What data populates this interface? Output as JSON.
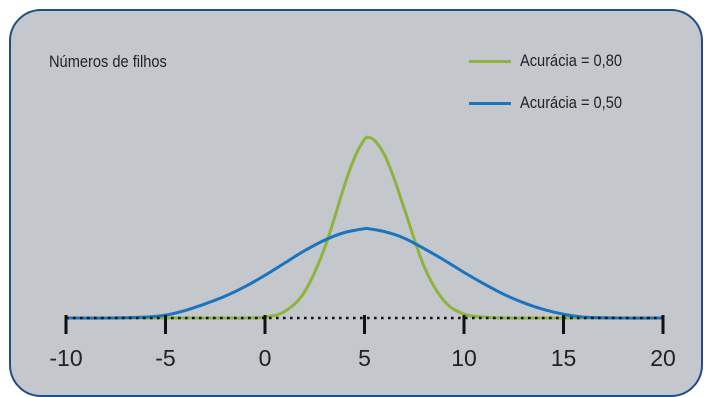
{
  "chart_data": {
    "type": "line",
    "title": "Números de filhos",
    "xlabel": "",
    "ylabel": "",
    "xlim": [
      -10,
      20
    ],
    "ylim": [
      0,
      0.2
    ],
    "x_ticks": [
      -10,
      -5,
      0,
      5,
      10,
      15,
      20
    ],
    "x_tick_labels": [
      "-10",
      "-5",
      "0",
      "5",
      "10",
      "15",
      "20"
    ],
    "grid": false,
    "legend_position": "top-right",
    "series": [
      {
        "name": "Acurácia = 0,80",
        "color": "#8db43e",
        "x": [
          -10,
          -8,
          -6,
          -4,
          -2,
          -1,
          0,
          1,
          2,
          3,
          4,
          4.5,
          5,
          5.2,
          5.5,
          6,
          6.5,
          7,
          8,
          9,
          10,
          11,
          12,
          14,
          16,
          18,
          20
        ],
        "y": [
          0,
          0,
          0,
          0,
          0,
          0,
          0.001,
          0.007,
          0.028,
          0.074,
          0.14,
          0.169,
          0.188,
          0.19,
          0.187,
          0.172,
          0.146,
          0.115,
          0.054,
          0.018,
          0.004,
          0.001,
          0,
          0,
          0,
          0,
          0
        ]
      },
      {
        "name": "Acurácia = 0,50",
        "color": "#1a74bf",
        "x": [
          -10,
          -8,
          -6,
          -5,
          -4,
          -3,
          -2,
          -1,
          0,
          1,
          2,
          3,
          4,
          5,
          5.2,
          6,
          7,
          8,
          9,
          10,
          11,
          12,
          13,
          14,
          15,
          16,
          18,
          20
        ],
        "y": [
          0,
          0,
          0.001,
          0.003,
          0.008,
          0.015,
          0.023,
          0.033,
          0.045,
          0.058,
          0.071,
          0.082,
          0.09,
          0.094,
          0.094,
          0.091,
          0.084,
          0.073,
          0.061,
          0.048,
          0.036,
          0.025,
          0.016,
          0.009,
          0.004,
          0.001,
          0,
          0
        ]
      }
    ]
  }
}
